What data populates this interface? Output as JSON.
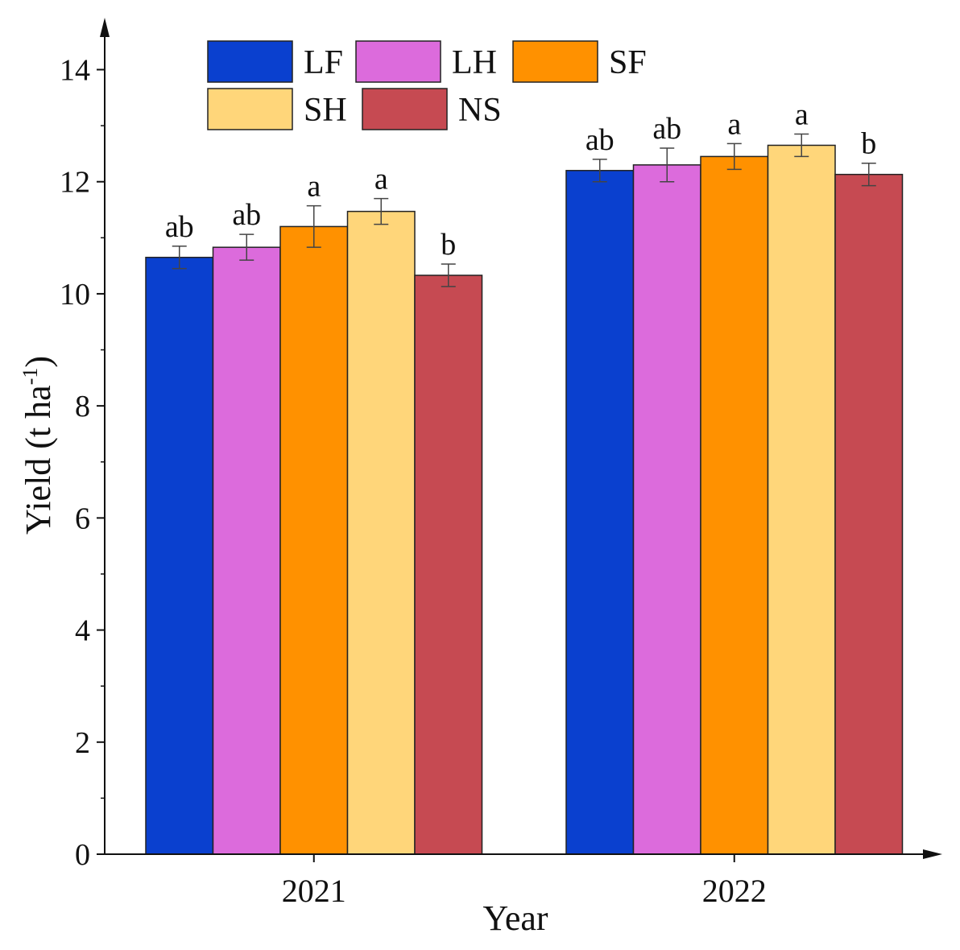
{
  "chart_data": {
    "type": "bar",
    "xlabel": "Year",
    "ylabel": "Yield (t ha",
    "ylabel_sup": "-1",
    "ylabel_close": ")",
    "ylim": [
      0,
      14
    ],
    "yticks": [
      0,
      2,
      4,
      6,
      8,
      10,
      12,
      14
    ],
    "categories": [
      "2021",
      "2022"
    ],
    "series": [
      {
        "name": "LF",
        "color": "#0a40cf",
        "values": [
          10.65,
          12.2
        ],
        "errors": [
          0.2,
          0.2
        ],
        "letters": [
          "ab",
          "ab"
        ]
      },
      {
        "name": "LH",
        "color": "#dc6bdc",
        "values": [
          10.83,
          12.3
        ],
        "errors": [
          0.23,
          0.3
        ],
        "letters": [
          "ab",
          "ab"
        ]
      },
      {
        "name": "SF",
        "color": "#ff9100",
        "values": [
          11.2,
          12.45
        ],
        "errors": [
          0.37,
          0.23
        ],
        "letters": [
          "a",
          "a"
        ]
      },
      {
        "name": "SH",
        "color": "#ffd67a",
        "values": [
          11.47,
          12.65
        ],
        "errors": [
          0.23,
          0.2
        ],
        "letters": [
          "a",
          "a"
        ]
      },
      {
        "name": "NS",
        "color": "#c64a52",
        "values": [
          10.33,
          12.13
        ],
        "errors": [
          0.2,
          0.2
        ],
        "letters": [
          "b",
          "b"
        ]
      }
    ],
    "legend_placement": "top-left",
    "grid": false
  }
}
